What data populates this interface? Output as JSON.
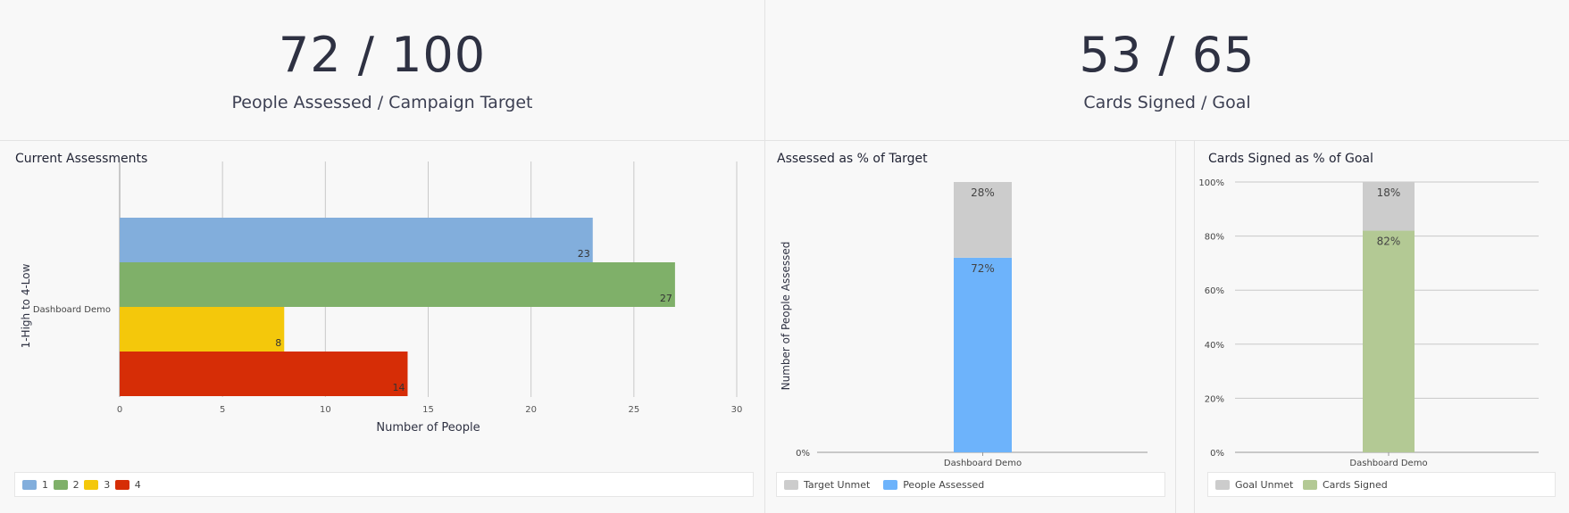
{
  "kpis": [
    {
      "value": "72 / 100",
      "caption": "People Assessed / Campaign Target"
    },
    {
      "value": "53 / 65",
      "caption": "Cards Signed / Goal"
    }
  ],
  "colors": {
    "series_1": "#82aedc",
    "series_2": "#7fb069",
    "series_3": "#f4c80b",
    "series_4": "#d62d06",
    "target_unmet": "#cccccc",
    "people_assessed": "#6db3fb",
    "goal_unmet": "#cccccc",
    "cards_signed": "#b3c994"
  },
  "panels": {
    "assessments": {
      "title": "Current Assessments",
      "legend": [
        {
          "label": "1",
          "color": "#82aedc"
        },
        {
          "label": "2",
          "color": "#7fb069"
        },
        {
          "label": "3",
          "color": "#f4c80b"
        },
        {
          "label": "4",
          "color": "#d62d06"
        }
      ]
    },
    "assessed_pct": {
      "title": "Assessed as % of Target",
      "legend": [
        {
          "label": "Target Unmet",
          "color": "#cccccc"
        },
        {
          "label": "People Assessed",
          "color": "#6db3fb"
        }
      ]
    },
    "cards_pct": {
      "title": "Cards Signed as % of Goal",
      "legend": [
        {
          "label": "Goal Unmet",
          "color": "#cccccc"
        },
        {
          "label": "Cards Signed",
          "color": "#b3c994"
        }
      ]
    }
  },
  "chart_data": [
    {
      "type": "bar",
      "orientation": "horizontal",
      "title": "Current Assessments",
      "categories": [
        "Dashboard Demo"
      ],
      "series": [
        {
          "name": "1",
          "values": [
            23
          ]
        },
        {
          "name": "2",
          "values": [
            27
          ]
        },
        {
          "name": "3",
          "values": [
            8
          ]
        },
        {
          "name": "4",
          "values": [
            14
          ]
        }
      ],
      "xlabel": "Number of People",
      "ylabel": "1-High to 4-Low",
      "xlim": [
        0,
        30
      ],
      "xticks": [
        "0",
        "5",
        "10",
        "15",
        "20",
        "25",
        "30"
      ],
      "grid": true,
      "legend": "bottom"
    },
    {
      "type": "bar",
      "stacked": true,
      "title": "Assessed as % of Target",
      "categories": [
        "Dashboard Demo"
      ],
      "series": [
        {
          "name": "People Assessed",
          "values": [
            72
          ],
          "label": "72%"
        },
        {
          "name": "Target Unmet",
          "values": [
            28
          ],
          "label": "28%"
        }
      ],
      "ylabel": "Number of People Assessed",
      "ylim": [
        0,
        100
      ],
      "yticks": [
        "0%"
      ],
      "legend": "bottom"
    },
    {
      "type": "bar",
      "stacked": true,
      "title": "Cards Signed as % of Goal",
      "categories": [
        "Dashboard Demo"
      ],
      "series": [
        {
          "name": "Cards Signed",
          "values": [
            82
          ],
          "label": "82%"
        },
        {
          "name": "Goal Unmet",
          "values": [
            18
          ],
          "label": "18%"
        }
      ],
      "ylim": [
        0,
        100
      ],
      "yticks": [
        "0%",
        "20%",
        "40%",
        "60%",
        "80%",
        "100%"
      ],
      "grid": true,
      "legend": "bottom"
    }
  ]
}
